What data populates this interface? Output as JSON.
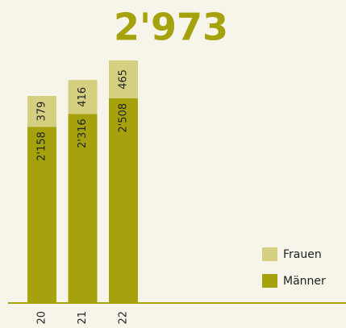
{
  "chart_data": {
    "type": "bar",
    "stacked": true,
    "title": "2'973",
    "categories": [
      "20",
      "21",
      "22"
    ],
    "series": [
      {
        "name": "Männer",
        "color": "#a6a20e",
        "values": [
          2158,
          2316,
          2508
        ],
        "value_labels": [
          "2'158",
          "2'316",
          "2'508"
        ]
      },
      {
        "name": "Frauen",
        "color": "#d5d07f",
        "values": [
          379,
          416,
          465
        ]
      }
    ],
    "legend": "lower right"
  }
}
